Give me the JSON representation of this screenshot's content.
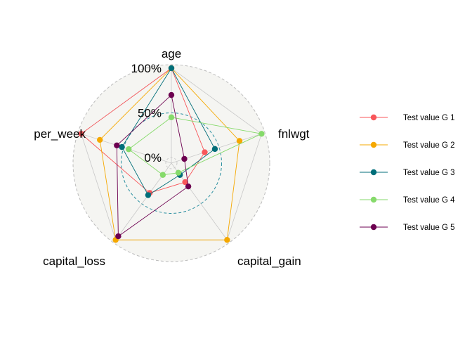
{
  "chart_data": {
    "type": "radar",
    "axes": [
      "age",
      "fnlwgt",
      "capital_gain",
      "capital_loss",
      "hours_per_week"
    ],
    "axis_labels_visible": [
      "age",
      "fnlwgt",
      "capital_gain",
      "capital_loss",
      "per_week"
    ],
    "grid_labels": [
      "0%",
      "50%",
      "100%"
    ],
    "ylim": [
      0,
      100
    ],
    "grid": {
      "levels": [
        0,
        50,
        100
      ],
      "style": "dashed",
      "mid_color": "#2a8fa0",
      "outer_color": "#bbbbbb"
    },
    "legend_position": "right",
    "series": [
      {
        "name": "Test value G 1",
        "color": "#F8565A",
        "values": [
          100,
          33,
          20,
          35,
          100
        ]
      },
      {
        "name": "Test value G 2",
        "color": "#F5A800",
        "values": [
          100,
          74,
          100,
          100,
          78
        ]
      },
      {
        "name": "Test value G 3",
        "color": "#006E79",
        "values": [
          100,
          45,
          10,
          38,
          52
        ]
      },
      {
        "name": "Test value G 4",
        "color": "#86DA6B",
        "values": [
          45,
          100,
          7,
          10,
          44
        ]
      },
      {
        "name": "Test value G 5",
        "color": "#6D0050",
        "values": [
          70,
          9,
          26,
          95,
          58
        ]
      }
    ]
  }
}
